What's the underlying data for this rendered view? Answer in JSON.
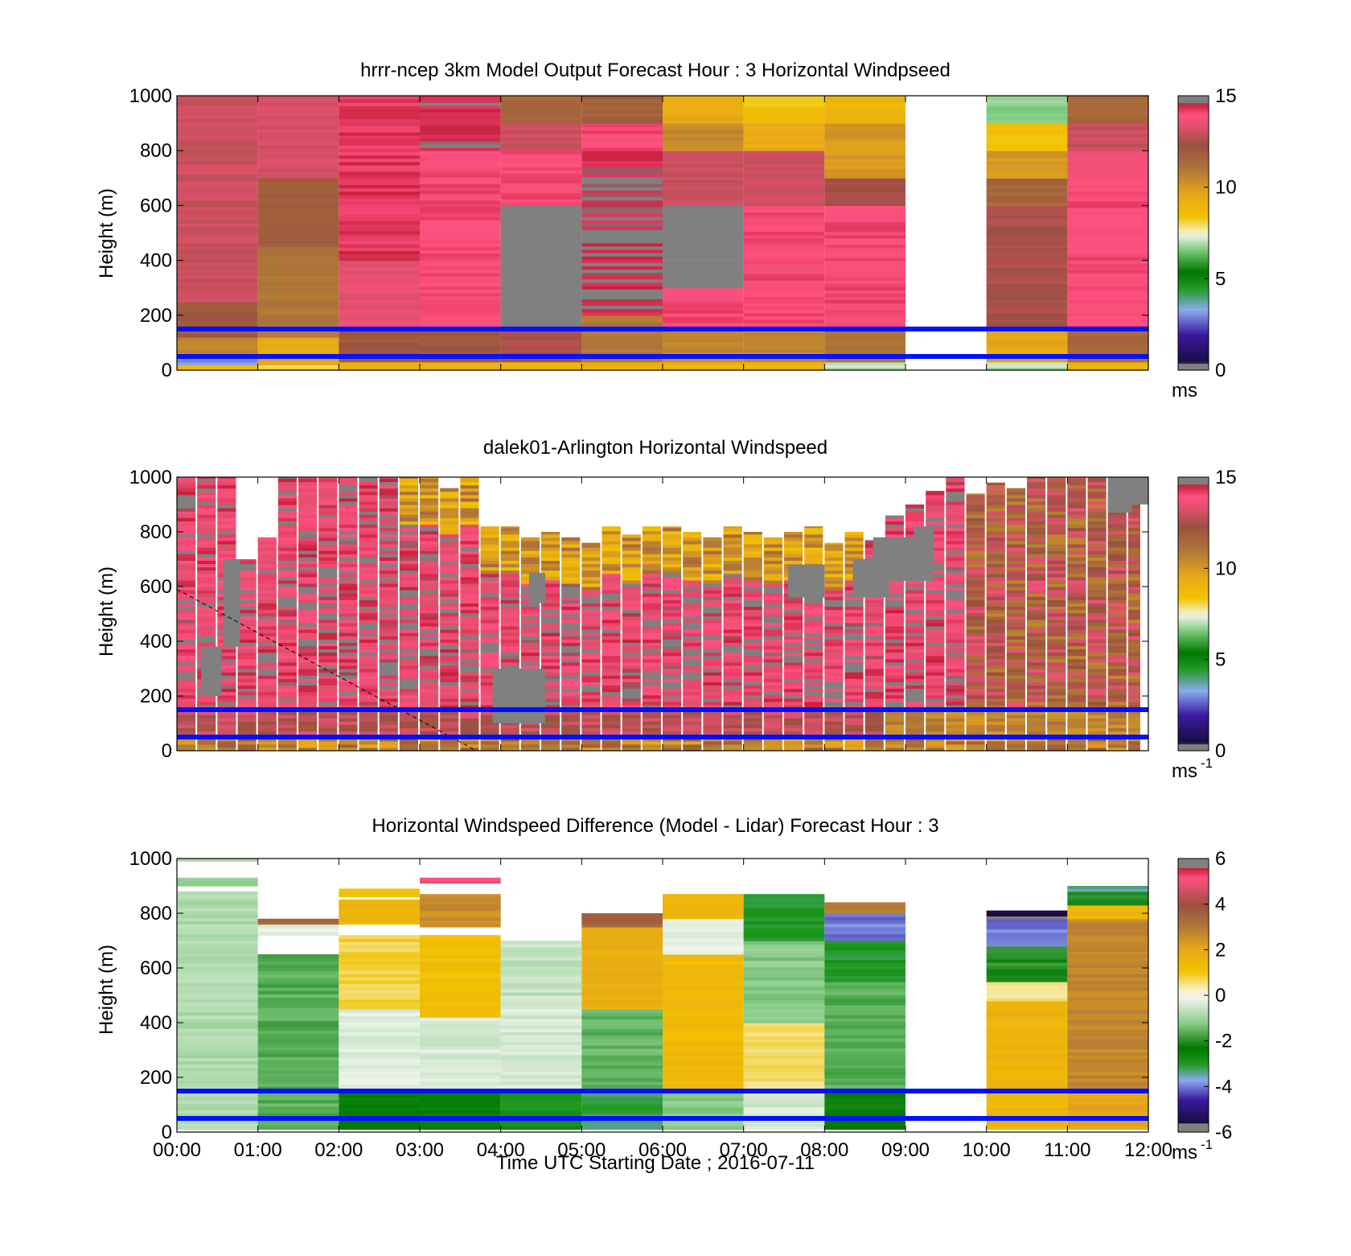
{
  "figure": {
    "xlabel": "Time UTC  Starting Date ; 2016-07-11",
    "x_ticks": [
      "00:00",
      "01:00",
      "02:00",
      "03:00",
      "04:00",
      "05:00",
      "06:00",
      "07:00",
      "08:00",
      "09:00",
      "10:00",
      "11:00",
      "12:00"
    ]
  },
  "chart_data": [
    {
      "type": "heatmap",
      "title": "hrrr-ncep 3km Model Output   Forecast Hour : 3 Horizontal Windpseed",
      "ylabel": "Height (m)",
      "ylim": [
        0,
        1000
      ],
      "y_ticks": [
        "0",
        "200",
        "400",
        "600",
        "800",
        "1000"
      ],
      "xlim": [
        "00:00",
        "12:00"
      ],
      "colorbar": {
        "ticks": [
          "0",
          "5",
          "10",
          "15"
        ],
        "range": [
          0,
          15
        ],
        "unit": "ms",
        "unit_sup": ""
      },
      "reference_lines_m": [
        150,
        50
      ],
      "hours": [
        0,
        1,
        2,
        3,
        4,
        5,
        6,
        7,
        8,
        9,
        10,
        11
      ],
      "profiles": [
        {
          "hour": 0,
          "layers": [
            [
              0,
              20,
              9
            ],
            [
              20,
              40,
              3
            ],
            [
              40,
              120,
              10.5
            ],
            [
              120,
              250,
              12
            ],
            [
              250,
              1000,
              13
            ]
          ]
        },
        {
          "hour": 1,
          "layers": [
            [
              0,
              20,
              8
            ],
            [
              20,
              120,
              9.5
            ],
            [
              120,
              450,
              11
            ],
            [
              450,
              700,
              12
            ],
            [
              700,
              1000,
              13.2
            ]
          ]
        },
        {
          "hour": 2,
          "layers": [
            [
              0,
              30,
              9
            ],
            [
              30,
              150,
              12
            ],
            [
              150,
              400,
              13.5
            ],
            [
              400,
              1000,
              14.3
            ]
          ]
        },
        {
          "hour": 3,
          "layers": [
            [
              0,
              30,
              9
            ],
            [
              30,
              150,
              12
            ],
            [
              150,
              800,
              14
            ],
            [
              800,
              1000,
              14.5
            ]
          ]
        },
        {
          "hour": 4,
          "layers": [
            [
              0,
              30,
              9
            ],
            [
              30,
              150,
              12.5
            ],
            [
              150,
              600,
              15
            ],
            [
              600,
              800,
              14
            ],
            [
              800,
              900,
              13
            ],
            [
              900,
              1000,
              11.5
            ]
          ]
        },
        {
          "hour": 5,
          "layers": [
            [
              0,
              30,
              9
            ],
            [
              30,
              200,
              11
            ],
            [
              200,
              800,
              14.5
            ],
            [
              800,
              900,
              14
            ],
            [
              900,
              1000,
              11.8
            ]
          ]
        },
        {
          "hour": 6,
          "layers": [
            [
              0,
              30,
              9
            ],
            [
              30,
              150,
              10.5
            ],
            [
              150,
              300,
              14
            ],
            [
              300,
              400,
              15
            ],
            [
              "gap",
              400,
              500
            ],
            [
              500,
              600,
              15.3
            ],
            [
              600,
              800,
              13
            ],
            [
              800,
              900,
              10.5
            ],
            [
              900,
              1000,
              9.5
            ]
          ]
        },
        {
          "hour": 7,
          "layers": [
            [
              0,
              30,
              9
            ],
            [
              30,
              150,
              10.5
            ],
            [
              150,
              600,
              14
            ],
            [
              600,
              800,
              13
            ],
            [
              800,
              900,
              9.5
            ],
            [
              900,
              1000,
              8.5
            ]
          ]
        },
        {
          "hour": 8,
          "layers": [
            [
              0,
              30,
              7
            ],
            [
              30,
              150,
              11
            ],
            [
              150,
              600,
              14
            ],
            [
              600,
              700,
              12.5
            ],
            [
              700,
              900,
              10
            ],
            [
              900,
              1000,
              9
            ]
          ]
        },
        {
          "hour": 9,
          "layers": []
        },
        {
          "hour": 10,
          "layers": [
            [
              0,
              30,
              7
            ],
            [
              30,
              150,
              9.5
            ],
            [
              150,
              600,
              12.5
            ],
            [
              600,
              700,
              11.5
            ],
            [
              700,
              800,
              10
            ],
            [
              800,
              900,
              8.5
            ],
            [
              900,
              1000,
              6.8
            ]
          ]
        },
        {
          "hour": 11,
          "layers": [
            [
              0,
              30,
              9
            ],
            [
              30,
              150,
              11.5
            ],
            [
              150,
              700,
              14
            ],
            [
              700,
              800,
              13.8
            ],
            [
              800,
              900,
              13
            ],
            [
              900,
              1000,
              11.5
            ]
          ]
        }
      ]
    },
    {
      "type": "heatmap",
      "title": "dalek01-Arlington  Horizontal Windspeed",
      "ylabel": "Height (m)",
      "ylim": [
        0,
        1000
      ],
      "y_ticks": [
        "0",
        "200",
        "400",
        "600",
        "800",
        "1000"
      ],
      "xlim": [
        "00:00",
        "12:00"
      ],
      "colorbar": {
        "ticks": [
          "0",
          "5",
          "10",
          "15"
        ],
        "range": [
          0,
          15
        ],
        "unit": "ms",
        "unit_sup": "-1"
      },
      "reference_lines_m": [
        150,
        50
      ],
      "diagonal_dashed_line": {
        "from": [
          0,
          590
        ],
        "to": [
          3.7,
          0
        ]
      },
      "column_width_hours": 0.25,
      "column_tops_m": [
        1000,
        1000,
        1000,
        700,
        780,
        1000,
        1000,
        1000,
        1000,
        1000,
        1000,
        1000,
        1000,
        960,
        1000,
        820,
        820,
        780,
        800,
        780,
        760,
        820,
        790,
        820,
        820,
        800,
        780,
        820,
        800,
        780,
        800,
        820,
        760,
        800,
        770,
        860,
        900,
        950,
        1000,
        940,
        980,
        960,
        1000,
        1000,
        1000,
        1000,
        950,
        1000
      ],
      "gray_patches": [
        {
          "x0": 0.3,
          "x1": 0.55,
          "y0": 200,
          "y1": 380
        },
        {
          "x0": 0.58,
          "x1": 0.78,
          "y0": 380,
          "y1": 700
        },
        {
          "x0": 3.9,
          "x1": 4.55,
          "y0": 100,
          "y1": 300
        },
        {
          "x0": 4.35,
          "x1": 4.55,
          "y0": 540,
          "y1": 650
        },
        {
          "x0": 7.55,
          "x1": 8.0,
          "y0": 560,
          "y1": 680
        },
        {
          "x0": 8.35,
          "x1": 8.8,
          "y0": 560,
          "y1": 700
        },
        {
          "x0": 8.6,
          "x1": 9.1,
          "y0": 620,
          "y1": 780
        },
        {
          "x0": 9.1,
          "x1": 9.35,
          "y0": 620,
          "y1": 820
        },
        {
          "x0": 11.5,
          "x1": 11.8,
          "y0": 870,
          "y1": 1000
        },
        {
          "x0": 11.8,
          "x1": 12.0,
          "y0": 900,
          "y1": 1000
        }
      ]
    },
    {
      "type": "heatmap",
      "title": "Horizontal Windspeed Difference (Model - Lidar) Forecast Hour : 3",
      "ylabel": "Height (m)",
      "ylim": [
        0,
        1000
      ],
      "y_ticks": [
        "0",
        "200",
        "400",
        "600",
        "800",
        "1000"
      ],
      "xlim": [
        "00:00",
        "12:00"
      ],
      "colorbar": {
        "ticks": [
          "-6",
          "-4",
          "-2",
          "0",
          "2",
          "4",
          "6"
        ],
        "range": [
          -6,
          6
        ],
        "unit": "ms",
        "unit_sup": "-1"
      },
      "reference_lines_m": [
        150,
        50
      ],
      "hours": [
        0,
        1,
        2,
        3,
        4,
        5,
        6,
        7,
        8,
        9,
        10,
        11
      ],
      "profiles": [
        {
          "hour": 0,
          "layers": [
            [
              10,
              880,
              -0.8
            ],
            [
              900,
              930,
              -1.0
            ],
            [
              990,
              1000,
              -1.0
            ]
          ]
        },
        {
          "hour": 1,
          "layers": [
            [
              10,
              650,
              -1.6
            ],
            [
              720,
              760,
              -0.2
            ],
            [
              760,
              780,
              3.5
            ]
          ]
        },
        {
          "hour": 2,
          "layers": [
            [
              10,
              150,
              -2.4
            ],
            [
              150,
              450,
              -0.3
            ],
            [
              450,
              720,
              0.8
            ],
            [
              760,
              850,
              1.5
            ],
            [
              860,
              890,
              1.2
            ]
          ]
        },
        {
          "hour": 3,
          "layers": [
            [
              10,
              150,
              -2.4
            ],
            [
              150,
              420,
              -0.4
            ],
            [
              420,
              720,
              1.2
            ],
            [
              750,
              870,
              2.6
            ],
            [
              910,
              930,
              5
            ]
          ]
        },
        {
          "hour": 4,
          "layers": [
            [
              10,
              150,
              -2.8
            ],
            [
              150,
              500,
              -0.4
            ],
            [
              500,
              700,
              -0.6
            ]
          ]
        },
        {
          "hour": 5,
          "layers": [
            [
              10,
              150,
              -3.2
            ],
            [
              150,
              450,
              -1.5
            ],
            [
              450,
              750,
              1.8
            ],
            [
              750,
              800,
              3.5
            ]
          ]
        },
        {
          "hour": 6,
          "layers": [
            [
              10,
              150,
              -1.2
            ],
            [
              150,
              650,
              1.4
            ],
            [
              650,
              780,
              -0.2
            ],
            [
              780,
              870,
              1.6
            ]
          ]
        },
        {
          "hour": 7,
          "layers": [
            [
              10,
              150,
              -0.4
            ],
            [
              150,
              400,
              0.6
            ],
            [
              400,
              700,
              -1.2
            ],
            [
              700,
              870,
              -3
            ]
          ]
        },
        {
          "hour": 8,
          "layers": [
            [
              10,
              150,
              -2.3
            ],
            [
              150,
              550,
              -1.6
            ],
            [
              550,
              700,
              -3
            ],
            [
              700,
              800,
              -4
            ],
            [
              800,
              840,
              3
            ]
          ]
        },
        {
          "hour": 9,
          "layers": []
        },
        {
          "hour": 10,
          "layers": [
            [
              10,
              150,
              1.5
            ],
            [
              150,
              480,
              1.6
            ],
            [
              480,
              550,
              0.5
            ],
            [
              550,
              680,
              -2
            ],
            [
              680,
              780,
              -4
            ],
            [
              780,
              810,
              -5.6
            ]
          ]
        },
        {
          "hour": 11,
          "layers": [
            [
              10,
              150,
              2.0
            ],
            [
              150,
              780,
              2.7
            ],
            [
              780,
              830,
              1.5
            ],
            [
              830,
              880,
              -2
            ],
            [
              880,
              900,
              -3.5
            ]
          ]
        }
      ]
    }
  ],
  "colormaps": {
    "speed": [
      [
        0.0,
        "#808080"
      ],
      [
        0.025,
        "#808080"
      ],
      [
        0.03,
        "#1a0d40"
      ],
      [
        0.13,
        "#3a1aa0"
      ],
      [
        0.22,
        "#8aaaf0"
      ],
      [
        0.3,
        "#209a20"
      ],
      [
        0.36,
        "#007800"
      ],
      [
        0.44,
        "#7ccc7c"
      ],
      [
        0.49,
        "#e8f0e0"
      ],
      [
        0.51,
        "#f3ecb0"
      ],
      [
        0.56,
        "#f2c200"
      ],
      [
        0.64,
        "#e8a818"
      ],
      [
        0.73,
        "#b07838"
      ],
      [
        0.82,
        "#9b5040"
      ],
      [
        0.88,
        "#d85068"
      ],
      [
        0.93,
        "#ff5080"
      ],
      [
        0.97,
        "#c8203c"
      ],
      [
        0.975,
        "#808080"
      ],
      [
        1.0,
        "#808080"
      ]
    ],
    "diff": [
      [
        0.0,
        "#808080"
      ],
      [
        0.03,
        "#808080"
      ],
      [
        0.035,
        "#1a0d40"
      ],
      [
        0.12,
        "#3a1aa0"
      ],
      [
        0.19,
        "#8aaaf0"
      ],
      [
        0.25,
        "#209a20"
      ],
      [
        0.31,
        "#007800"
      ],
      [
        0.4,
        "#8acc8a"
      ],
      [
        0.49,
        "#f0f4ec"
      ],
      [
        0.52,
        "#f6f2c8"
      ],
      [
        0.59,
        "#f2c200"
      ],
      [
        0.67,
        "#e8a818"
      ],
      [
        0.75,
        "#b07838"
      ],
      [
        0.83,
        "#9b5040"
      ],
      [
        0.89,
        "#d85068"
      ],
      [
        0.93,
        "#ff5080"
      ],
      [
        0.965,
        "#c8203c"
      ],
      [
        0.97,
        "#808080"
      ],
      [
        1.0,
        "#808080"
      ]
    ]
  }
}
